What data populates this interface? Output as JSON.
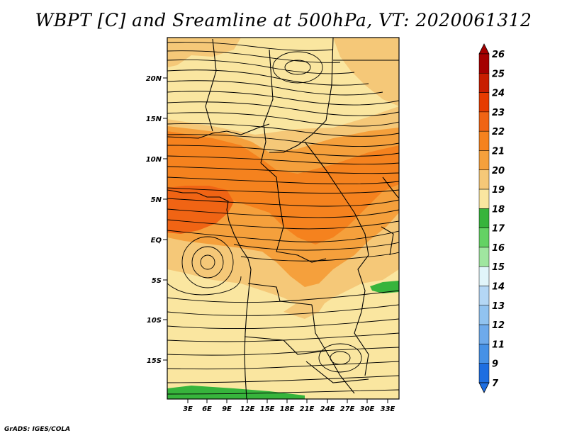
{
  "title": "WBPT [C] and Sreamline at 500hPa, VT: 2020061312",
  "credit": "GrADS: IGES/COLA",
  "map": {
    "variable": "Wet-bulb potential temperature",
    "units": "C",
    "level": "500hPa",
    "valid_time": "2020061312",
    "lat_ticks": [
      "20N",
      "15N",
      "10N",
      "5N",
      "EQ",
      "5S",
      "10S",
      "15S"
    ],
    "lon_ticks": [
      "3E",
      "6E",
      "9E",
      "12E",
      "15E",
      "18E",
      "21E",
      "24E",
      "27E",
      "30E",
      "33E"
    ],
    "lat_range": [
      -20,
      25
    ],
    "lon_range": [
      0,
      34
    ],
    "regions": [
      {
        "name": "cool-north-band",
        "value": 19
      },
      {
        "name": "warm-band-northwest",
        "value": 22
      },
      {
        "name": "gulf-of-guinea-core",
        "value": 23
      },
      {
        "name": "central-warm-belt",
        "value": 21
      },
      {
        "name": "southern-cool-area",
        "value": 19
      },
      {
        "name": "green-southwest-strip",
        "value": 17
      },
      {
        "name": "green-east-patch",
        "value": 17
      }
    ]
  },
  "colorbar": {
    "labels": [
      "26",
      "25",
      "24",
      "23",
      "22",
      "21",
      "20",
      "19",
      "18",
      "17",
      "16",
      "15",
      "14",
      "13",
      "12",
      "11",
      "9",
      "7"
    ],
    "colors": [
      "#a50000",
      "#c81e00",
      "#e63c00",
      "#f06414",
      "#f5821e",
      "#f5a03c",
      "#f5c878",
      "#fae6a0",
      "#37b43c",
      "#64d264",
      "#a0e6a0",
      "#e1f5fa",
      "#b4d7f5",
      "#91c3f0",
      "#6eaaeb",
      "#4691e6",
      "#1e6ee1"
    ]
  }
}
